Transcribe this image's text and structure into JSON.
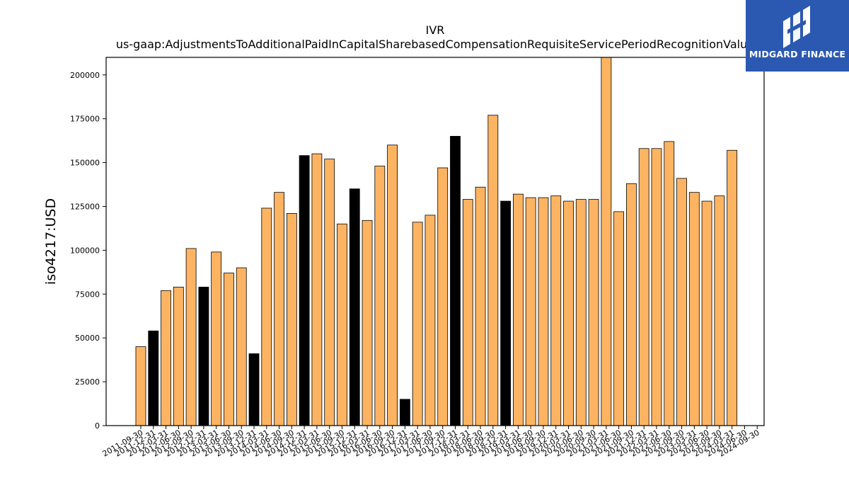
{
  "chart_data": {
    "type": "bar",
    "title": "IVR",
    "subtitle": "us-gaap:AdjustmentsToAdditionalPaidInCapitalSharebasedCompensationRequisiteServicePeriodRecognitionValue",
    "xlabel": "",
    "ylabel": "iso4217:USD",
    "ylim": [
      0,
      210000
    ],
    "yticks": [
      0,
      25000,
      50000,
      75000,
      100000,
      125000,
      150000,
      175000,
      200000
    ],
    "grid": false,
    "categories": [
      "2011-09-30",
      "2011-12-31",
      "2012-03-31",
      "2012-06-30",
      "2012-09-30",
      "2012-12-31",
      "2013-03-31",
      "2013-06-30",
      "2013-09-30",
      "2013-12-31",
      "2014-03-31",
      "2014-06-30",
      "2014-09-30",
      "2014-12-31",
      "2015-03-31",
      "2015-06-30",
      "2015-09-30",
      "2015-12-31",
      "2016-03-31",
      "2016-06-30",
      "2016-09-30",
      "2016-12-31",
      "2017-03-31",
      "2017-06-30",
      "2017-09-30",
      "2017-12-31",
      "2018-03-31",
      "2018-06-30",
      "2018-09-30",
      "2018-12-31",
      "2019-03-31",
      "2019-06-30",
      "2019-09-30",
      "2019-12-31",
      "2020-03-31",
      "2020-06-30",
      "2020-09-30",
      "2021-03-31",
      "2021-06-30",
      "2021-09-30",
      "2021-12-31",
      "2022-03-31",
      "2022-06-30",
      "2022-09-30",
      "2023-03-31",
      "2023-06-30",
      "2023-09-30",
      "2024-03-31",
      "2024-06-30",
      "2024-09-30"
    ],
    "values": [
      45000,
      54000,
      77000,
      79000,
      101000,
      79000,
      99000,
      87000,
      90000,
      41000,
      124000,
      133000,
      121000,
      154000,
      155000,
      152000,
      115000,
      135000,
      117000,
      148000,
      160000,
      15000,
      116000,
      120000,
      147000,
      165000,
      129000,
      136000,
      177000,
      128000,
      132000,
      130000,
      130000,
      131000,
      128000,
      129000,
      129000,
      210000,
      122000,
      138000,
      158000,
      158000,
      162000,
      141000,
      133000,
      128000,
      131000,
      157000,
      null,
      null
    ],
    "highlighted": [
      false,
      true,
      false,
      false,
      false,
      true,
      false,
      false,
      false,
      true,
      false,
      false,
      false,
      true,
      false,
      false,
      false,
      true,
      false,
      false,
      false,
      true,
      false,
      false,
      false,
      true,
      false,
      false,
      false,
      true,
      false,
      false,
      false,
      false,
      false,
      false,
      false,
      false,
      false,
      false,
      false,
      false,
      false,
      false,
      false,
      false,
      false,
      false,
      false,
      false
    ],
    "colors": {
      "bar": "#fdb462",
      "highlight": "#000000",
      "edge": "#000000"
    }
  },
  "brand": {
    "name": "MIDGARD FINANCE",
    "logo": "midgard-logo-icon",
    "background": "#2b59b1"
  }
}
